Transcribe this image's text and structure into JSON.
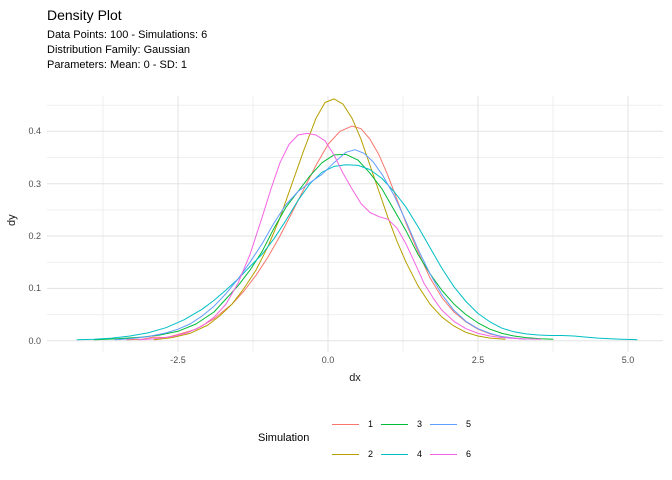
{
  "header": {
    "title": "Density Plot",
    "subtitle_lines": [
      "Data Points: 100 - Simulations: 6",
      "Distribution Family: Gaussian",
      "Parameters: Mean: 0 - SD: 1"
    ]
  },
  "chart_data": {
    "type": "line",
    "title": "Density Plot",
    "subtitle": "Data Points: 100 - Simulations: 6 / Distribution Family: Gaussian / Parameters: Mean: 0 - SD: 1",
    "xlabel": "dx",
    "ylabel": "dy",
    "xlim": [
      -4.683,
      5.583
    ],
    "ylim": [
      -0.0215,
      0.4675
    ],
    "x_ticks": [
      -2.5,
      0.0,
      2.5,
      5.0
    ],
    "x_tick_labels": [
      "-2.5",
      "0.0",
      "2.5",
      "5.0"
    ],
    "x_minor_ticks": [
      -3.75,
      -1.25,
      1.25,
      3.75
    ],
    "y_ticks": [
      0.0,
      0.1,
      0.2,
      0.3,
      0.4
    ],
    "y_tick_labels": [
      "0.0",
      "0.1",
      "0.2",
      "0.3",
      "0.4"
    ],
    "y_minor_ticks": [
      0.05,
      0.15,
      0.25,
      0.35,
      0.45
    ],
    "grid": true,
    "grid_major_color": "#e3e3e3",
    "grid_minor_color": "#efefef",
    "background_color": "#ffffff",
    "tick_label_color": "#4d4d4d",
    "legend": {
      "title": "Simulation",
      "position": "bottom",
      "rows": 2,
      "fill": "column"
    },
    "series": [
      {
        "name": "1",
        "color": "#F8766D",
        "points": [
          [
            -3.35,
            0.002
          ],
          [
            -3.1,
            0.003
          ],
          [
            -2.9,
            0.007
          ],
          [
            -2.7,
            0.006
          ],
          [
            -2.5,
            0.012
          ],
          [
            -2.2,
            0.022
          ],
          [
            -1.9,
            0.042
          ],
          [
            -1.6,
            0.07
          ],
          [
            -1.4,
            0.095
          ],
          [
            -1.2,
            0.125
          ],
          [
            -1.0,
            0.16
          ],
          [
            -0.8,
            0.2
          ],
          [
            -0.6,
            0.245
          ],
          [
            -0.4,
            0.29
          ],
          [
            -0.2,
            0.335
          ],
          [
            0.0,
            0.375
          ],
          [
            0.2,
            0.4
          ],
          [
            0.4,
            0.41
          ],
          [
            0.55,
            0.405
          ],
          [
            0.7,
            0.385
          ],
          [
            0.85,
            0.355
          ],
          [
            1.0,
            0.315
          ],
          [
            1.15,
            0.27
          ],
          [
            1.3,
            0.225
          ],
          [
            1.5,
            0.17
          ],
          [
            1.7,
            0.12
          ],
          [
            1.9,
            0.082
          ],
          [
            2.1,
            0.055
          ],
          [
            2.3,
            0.036
          ],
          [
            2.5,
            0.022
          ],
          [
            2.7,
            0.013
          ],
          [
            2.9,
            0.008
          ],
          [
            3.1,
            0.005
          ],
          [
            3.25,
            0.004
          ]
        ]
      },
      {
        "name": "2",
        "color": "#B79F00",
        "points": [
          [
            -2.9,
            0.002
          ],
          [
            -2.6,
            0.006
          ],
          [
            -2.3,
            0.014
          ],
          [
            -2.0,
            0.03
          ],
          [
            -1.8,
            0.048
          ],
          [
            -1.6,
            0.07
          ],
          [
            -1.4,
            0.1
          ],
          [
            -1.2,
            0.135
          ],
          [
            -1.0,
            0.18
          ],
          [
            -0.8,
            0.235
          ],
          [
            -0.6,
            0.3
          ],
          [
            -0.4,
            0.365
          ],
          [
            -0.2,
            0.425
          ],
          [
            -0.05,
            0.455
          ],
          [
            0.1,
            0.462
          ],
          [
            0.25,
            0.452
          ],
          [
            0.4,
            0.425
          ],
          [
            0.55,
            0.385
          ],
          [
            0.7,
            0.335
          ],
          [
            0.85,
            0.285
          ],
          [
            1.0,
            0.235
          ],
          [
            1.15,
            0.19
          ],
          [
            1.3,
            0.15
          ],
          [
            1.5,
            0.105
          ],
          [
            1.7,
            0.07
          ],
          [
            1.9,
            0.045
          ],
          [
            2.1,
            0.028
          ],
          [
            2.3,
            0.016
          ],
          [
            2.5,
            0.009
          ],
          [
            2.7,
            0.005
          ],
          [
            2.95,
            0.003
          ]
        ]
      },
      {
        "name": "3",
        "color": "#00BA38",
        "points": [
          [
            -3.9,
            0.002
          ],
          [
            -3.5,
            0.004
          ],
          [
            -3.1,
            0.007
          ],
          [
            -2.8,
            0.011
          ],
          [
            -2.5,
            0.018
          ],
          [
            -2.2,
            0.032
          ],
          [
            -1.9,
            0.055
          ],
          [
            -1.7,
            0.08
          ],
          [
            -1.5,
            0.105
          ],
          [
            -1.3,
            0.135
          ],
          [
            -1.1,
            0.17
          ],
          [
            -0.9,
            0.215
          ],
          [
            -0.7,
            0.255
          ],
          [
            -0.5,
            0.285
          ],
          [
            -0.3,
            0.315
          ],
          [
            -0.1,
            0.34
          ],
          [
            0.1,
            0.355
          ],
          [
            0.3,
            0.356
          ],
          [
            0.5,
            0.345
          ],
          [
            0.7,
            0.32
          ],
          [
            0.9,
            0.29
          ],
          [
            1.1,
            0.25
          ],
          [
            1.3,
            0.21
          ],
          [
            1.5,
            0.165
          ],
          [
            1.7,
            0.128
          ],
          [
            1.9,
            0.096
          ],
          [
            2.1,
            0.07
          ],
          [
            2.3,
            0.05
          ],
          [
            2.5,
            0.034
          ],
          [
            2.7,
            0.022
          ],
          [
            2.9,
            0.014
          ],
          [
            3.1,
            0.009
          ],
          [
            3.3,
            0.006
          ],
          [
            3.55,
            0.004
          ],
          [
            3.75,
            0.003
          ]
        ]
      },
      {
        "name": "4",
        "color": "#00BFC4",
        "points": [
          [
            -4.18,
            0.002
          ],
          [
            -3.9,
            0.003
          ],
          [
            -3.6,
            0.005
          ],
          [
            -3.3,
            0.009
          ],
          [
            -3.0,
            0.015
          ],
          [
            -2.7,
            0.025
          ],
          [
            -2.4,
            0.04
          ],
          [
            -2.1,
            0.06
          ],
          [
            -1.9,
            0.077
          ],
          [
            -1.7,
            0.097
          ],
          [
            -1.5,
            0.118
          ],
          [
            -1.3,
            0.142
          ],
          [
            -1.1,
            0.165
          ],
          [
            -0.9,
            0.195
          ],
          [
            -0.7,
            0.23
          ],
          [
            -0.5,
            0.268
          ],
          [
            -0.3,
            0.3
          ],
          [
            -0.1,
            0.322
          ],
          [
            0.1,
            0.333
          ],
          [
            0.3,
            0.336
          ],
          [
            0.5,
            0.335
          ],
          [
            0.7,
            0.327
          ],
          [
            0.9,
            0.31
          ],
          [
            1.1,
            0.285
          ],
          [
            1.3,
            0.255
          ],
          [
            1.5,
            0.218
          ],
          [
            1.7,
            0.178
          ],
          [
            1.9,
            0.138
          ],
          [
            2.1,
            0.103
          ],
          [
            2.3,
            0.075
          ],
          [
            2.5,
            0.052
          ],
          [
            2.7,
            0.036
          ],
          [
            2.9,
            0.024
          ],
          [
            3.1,
            0.017
          ],
          [
            3.3,
            0.013
          ],
          [
            3.5,
            0.011
          ],
          [
            3.7,
            0.01
          ],
          [
            3.9,
            0.01
          ],
          [
            4.1,
            0.009
          ],
          [
            4.3,
            0.007
          ],
          [
            4.5,
            0.005
          ],
          [
            4.7,
            0.004
          ],
          [
            4.9,
            0.003
          ],
          [
            5.15,
            0.002
          ]
        ]
      },
      {
        "name": "5",
        "color": "#619CFF",
        "points": [
          [
            -3.55,
            0.002
          ],
          [
            -3.3,
            0.004
          ],
          [
            -3.0,
            0.008
          ],
          [
            -2.7,
            0.015
          ],
          [
            -2.5,
            0.022
          ],
          [
            -2.3,
            0.032
          ],
          [
            -2.1,
            0.047
          ],
          [
            -1.9,
            0.066
          ],
          [
            -1.7,
            0.09
          ],
          [
            -1.5,
            0.118
          ],
          [
            -1.3,
            0.15
          ],
          [
            -1.1,
            0.185
          ],
          [
            -0.9,
            0.225
          ],
          [
            -0.7,
            0.26
          ],
          [
            -0.5,
            0.285
          ],
          [
            -0.3,
            0.302
          ],
          [
            -0.1,
            0.318
          ],
          [
            0.1,
            0.34
          ],
          [
            0.3,
            0.36
          ],
          [
            0.45,
            0.365
          ],
          [
            0.6,
            0.358
          ],
          [
            0.75,
            0.342
          ],
          [
            0.9,
            0.318
          ],
          [
            1.1,
            0.278
          ],
          [
            1.3,
            0.228
          ],
          [
            1.5,
            0.175
          ],
          [
            1.7,
            0.128
          ],
          [
            1.9,
            0.088
          ],
          [
            2.1,
            0.058
          ],
          [
            2.3,
            0.037
          ],
          [
            2.5,
            0.023
          ],
          [
            2.7,
            0.014
          ],
          [
            2.9,
            0.008
          ],
          [
            3.1,
            0.005
          ],
          [
            3.3,
            0.003
          ]
        ]
      },
      {
        "name": "6",
        "color": "#F564E2",
        "points": [
          [
            -3.15,
            0.002
          ],
          [
            -2.9,
            0.004
          ],
          [
            -2.6,
            0.008
          ],
          [
            -2.35,
            0.015
          ],
          [
            -2.1,
            0.028
          ],
          [
            -1.9,
            0.045
          ],
          [
            -1.7,
            0.07
          ],
          [
            -1.5,
            0.11
          ],
          [
            -1.3,
            0.165
          ],
          [
            -1.1,
            0.235
          ],
          [
            -0.95,
            0.29
          ],
          [
            -0.8,
            0.34
          ],
          [
            -0.65,
            0.375
          ],
          [
            -0.5,
            0.393
          ],
          [
            -0.35,
            0.396
          ],
          [
            -0.2,
            0.393
          ],
          [
            -0.05,
            0.382
          ],
          [
            0.1,
            0.355
          ],
          [
            0.25,
            0.32
          ],
          [
            0.4,
            0.29
          ],
          [
            0.55,
            0.262
          ],
          [
            0.7,
            0.245
          ],
          [
            0.85,
            0.237
          ],
          [
            1.0,
            0.232
          ],
          [
            1.15,
            0.215
          ],
          [
            1.3,
            0.185
          ],
          [
            1.45,
            0.148
          ],
          [
            1.6,
            0.11
          ],
          [
            1.75,
            0.082
          ],
          [
            1.9,
            0.058
          ],
          [
            2.1,
            0.037
          ],
          [
            2.3,
            0.023
          ],
          [
            2.5,
            0.014
          ],
          [
            2.7,
            0.009
          ],
          [
            2.9,
            0.006
          ],
          [
            3.2,
            0.004
          ],
          [
            3.55,
            0.003
          ]
        ]
      }
    ]
  }
}
